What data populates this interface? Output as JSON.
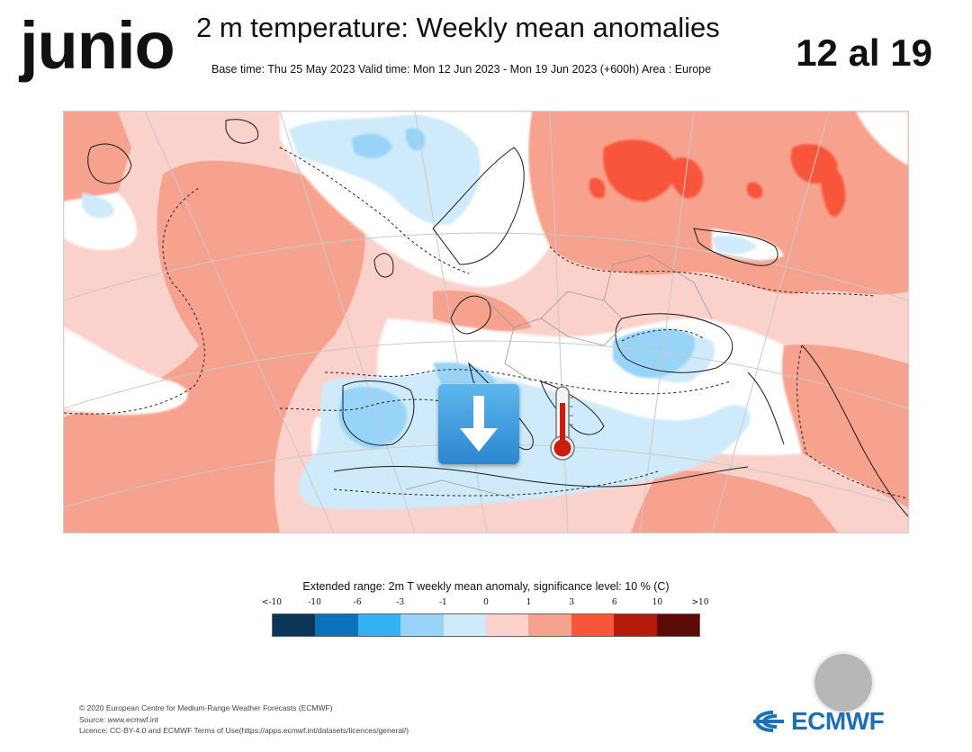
{
  "header": {
    "left_label": "junio",
    "title": "2 m temperature: Weekly mean anomalies",
    "subtitle": "Base time: Thu 25 May 2023 Valid time: Mon 12 Jun 2023 - Mon 19 Jun 2023 (+600h) Area : Europe",
    "right_label": "12 al 19"
  },
  "map": {
    "area": "Europe",
    "overlay_icons": [
      "down-arrow-icon",
      "thermometer-icon"
    ]
  },
  "legend": {
    "title": "Extended range: 2m T weekly mean anomaly, significance level: 10 % (C)",
    "tick_labels": [
      "<-10",
      "-10",
      "-6",
      "-3",
      "-1",
      "0",
      "1",
      "3",
      "6",
      "10",
      ">10"
    ],
    "colors": [
      "#0b3657",
      "#0a72b8",
      "#32b1f3",
      "#97d4f7",
      "#cfeafa",
      "#fbd1cb",
      "#f7a28e",
      "#f8553a",
      "#b51a0b",
      "#5b0b05"
    ]
  },
  "footer": {
    "line1": "© 2020 European Centre for Medium-Range Weather Forecasts (ECMWF)",
    "line2": "Source: www.ecmwf.int",
    "line3": "Licence: CC-BY-4.0 and ECMWF Terms of Use(https://apps.ecmwf.int/datasets/licences/general/)"
  },
  "logo": {
    "text": "ECMWF",
    "color": "#1f6fb5"
  }
}
